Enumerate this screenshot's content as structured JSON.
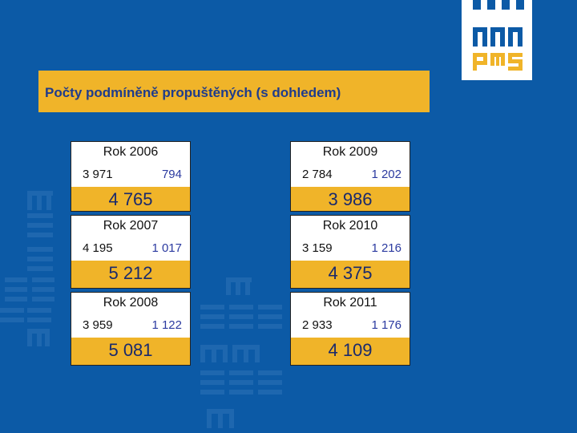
{
  "title": "Počty podmíněně propuštěných (s dohledem)",
  "logo_text": "PMS",
  "colors": {
    "background": "#0c5aa6",
    "accent": "#f0b429",
    "title_text": "#1f3c8c",
    "value_blue": "#2b3aa0"
  },
  "cards": [
    {
      "label": "Rok 2006",
      "left_value": "3 971",
      "right_value": "794",
      "total": "4 765"
    },
    {
      "label": "Rok 2007",
      "left_value": "4 195",
      "right_value": "1 017",
      "total": "5 212"
    },
    {
      "label": "Rok 2008",
      "left_value": "3 959",
      "right_value": "1 122",
      "total": "5 081"
    },
    {
      "label": "Rok 2009",
      "left_value": "2 784",
      "right_value": "1 202",
      "total": "3 986"
    },
    {
      "label": "Rok 2010",
      "left_value": "3 159",
      "right_value": "1 216",
      "total": "4 375"
    },
    {
      "label": "Rok 2011",
      "left_value": "2 933",
      "right_value": "1 176",
      "total": "4 109"
    }
  ]
}
